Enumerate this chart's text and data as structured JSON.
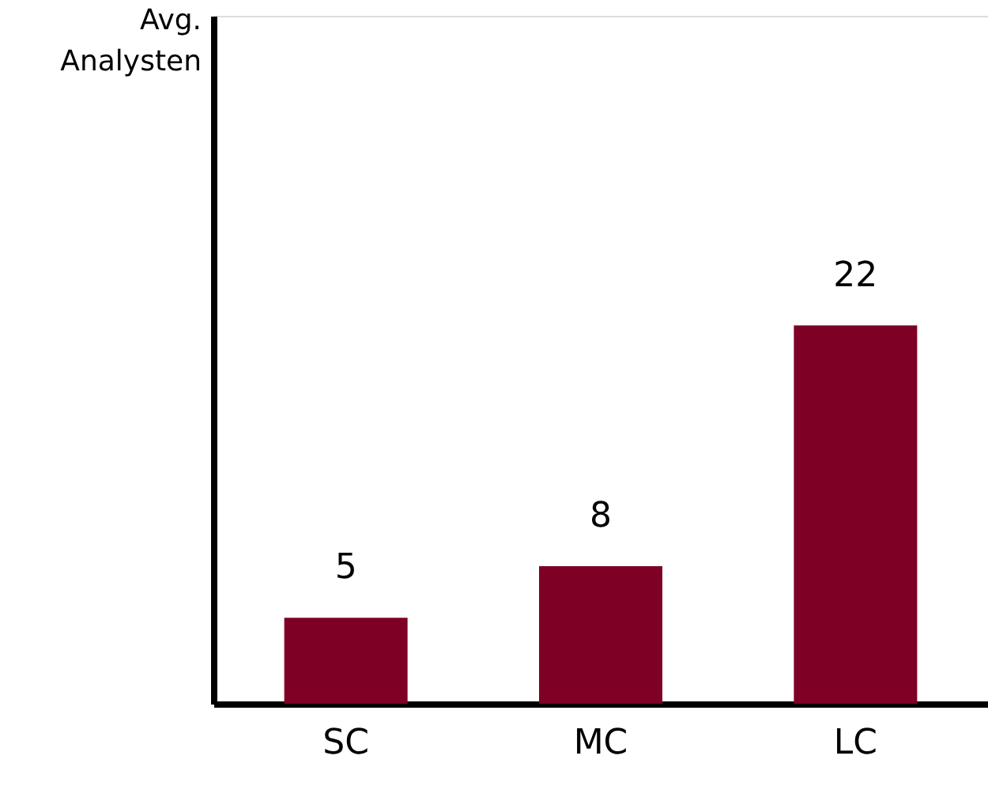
{
  "chart_data": {
    "type": "bar",
    "ylabel": "Avg. Analysten",
    "categories": [
      "SC",
      "MC",
      "LC"
    ],
    "values": [
      5,
      8,
      22
    ],
    "color": "#7f0025",
    "ylim": [
      0,
      40
    ],
    "data_labels": true,
    "grid": false,
    "tick_labels": "x"
  }
}
